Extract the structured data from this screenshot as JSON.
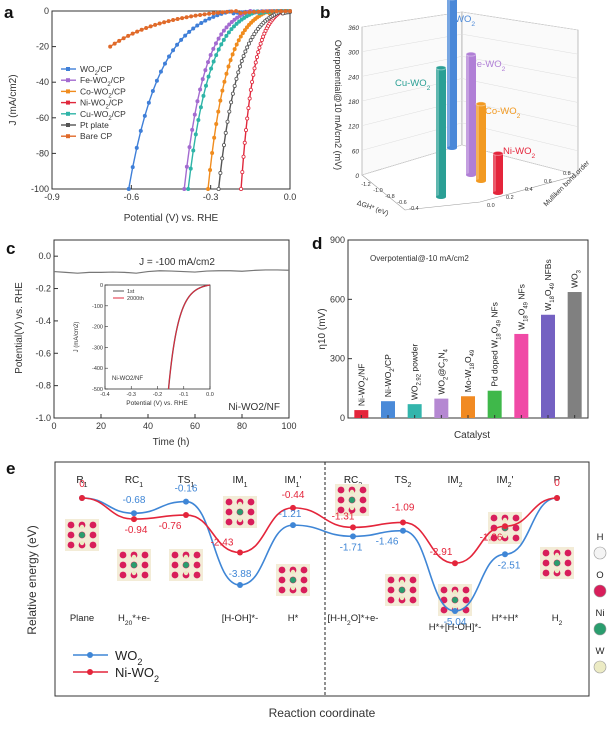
{
  "chart_data": [
    {
      "panel": "a",
      "type": "line",
      "xlabel": "Potential (V) vs. RHE",
      "ylabel": "J (mA/cm2)",
      "xlim": [
        -0.9,
        0.0
      ],
      "ylim": [
        -100,
        0
      ],
      "xticks": [
        "-0.9",
        "-0.6",
        "-0.3",
        "0.0"
      ],
      "yticks": [
        "0",
        "-20",
        "-40",
        "-60",
        "-80",
        "-100"
      ],
      "legend_position": "left",
      "series": [
        {
          "name": "WO2/CP",
          "color": "#3f7fd8",
          "marker": "square",
          "onset": -0.22,
          "end_x": -0.61
        },
        {
          "name": "Fe-WO2/CP",
          "color": "#a36bd0",
          "marker": "diamond",
          "onset": -0.15,
          "end_x": -0.4
        },
        {
          "name": "Co-WO2/CP",
          "color": "#f08c1e",
          "marker": "triangle",
          "onset": -0.08,
          "end_x": -0.31
        },
        {
          "name": "Ni-WO2/CP",
          "color": "#e0283c",
          "marker": "square-open",
          "onset": -0.03,
          "end_x": -0.185
        },
        {
          "name": "Cu-WO2/CP",
          "color": "#2fb4a8",
          "marker": "circle-half",
          "onset": -0.12,
          "end_x": -0.385
        },
        {
          "name": "Pt plate",
          "color": "#555555",
          "marker": "triangle-open",
          "onset": -0.03,
          "end_x": -0.27
        },
        {
          "name": "Bare CP",
          "color": "#e06a2a",
          "marker": "triangle-left",
          "onset": -0.2,
          "end_x": -0.68,
          "end_y": -20
        }
      ]
    },
    {
      "panel": "b",
      "type": "bar",
      "title": "",
      "zlabel": "Overpotential@10 mA/cm2 (mV)",
      "xlabel": "ΔGH* (eV)",
      "ylabel": "Mulliken bond order",
      "zlim": [
        0,
        360
      ],
      "zticks": [
        "0",
        "60",
        "120",
        "180",
        "240",
        "300",
        "360"
      ],
      "xticks": [
        "-1.2",
        "-1.0",
        "-0.8",
        "-0.6",
        "-0.4"
      ],
      "yticks": [
        "0.0",
        "0.2",
        "0.4",
        "0.6",
        "0.8"
      ],
      "bars": [
        {
          "label": "WO2",
          "value": 360,
          "color": "#4a88d8"
        },
        {
          "label": "Fe-WO2",
          "value": 290,
          "color": "#b07fd6"
        },
        {
          "label": "Cu-WO2",
          "value": 310,
          "color": "#2a9f95"
        },
        {
          "label": "Co-WO2",
          "value": 185,
          "color": "#f29a22"
        },
        {
          "label": "Ni-WO2",
          "value": 95,
          "color": "#e4253b"
        }
      ]
    },
    {
      "panel": "c",
      "type": "line",
      "annotation": "J = -100 mA/cm2",
      "sample_label": "Ni-WO2/NF",
      "xlabel": "Time (h)",
      "ylabel": "Potential(V) vs. RHE",
      "xlim": [
        0,
        100
      ],
      "ylim": [
        -1.0,
        0.1
      ],
      "xticks": [
        "0",
        "20",
        "40",
        "60",
        "80",
        "100"
      ],
      "yticks": [
        "0.0",
        "-0.2",
        "-0.4",
        "-0.6",
        "-0.8",
        "-1.0"
      ],
      "series": [
        {
          "name": "Ni-WO2/NF",
          "color": "#777777",
          "x": [
            0,
            5,
            10,
            15,
            20,
            25,
            30,
            35,
            40,
            45,
            50,
            55,
            60,
            65,
            70,
            75,
            80,
            85,
            90,
            95,
            100
          ],
          "y": [
            -0.095,
            -0.1,
            -0.105,
            -0.1,
            -0.1,
            -0.098,
            -0.1,
            -0.105,
            -0.095,
            -0.09,
            -0.092,
            -0.095,
            -0.098,
            -0.092,
            -0.09,
            -0.09,
            -0.093,
            -0.088,
            -0.085,
            -0.085,
            -0.087
          ]
        }
      ],
      "inset": {
        "xlabel": "Potential (V) vs. RHE",
        "ylabel": "J (mA/cm2)",
        "xlim": [
          -0.4,
          0.0
        ],
        "ylim": [
          -500,
          0
        ],
        "xticks": [
          "-0.4",
          "-0.3",
          "-0.2",
          "-0.1",
          "0.0"
        ],
        "yticks": [
          "0",
          "-100",
          "-200",
          "-300",
          "-400",
          "-500"
        ],
        "label": "Ni-WO2/NF",
        "legend": [
          {
            "name": "1st",
            "color": "#555555"
          },
          {
            "name": "2000th",
            "color": "#e0283c"
          }
        ]
      }
    },
    {
      "panel": "d",
      "type": "bar",
      "title": "Overpotential@-10 mA/cm2",
      "xlabel": "Catalyst",
      "ylabel": "η10 (mV)",
      "ylim": [
        0,
        900
      ],
      "yticks": [
        "0",
        "300",
        "600",
        "900"
      ],
      "categories": [
        "Ni-WO2/NF",
        "Ni-WO2/CP",
        "WO2.92 powder",
        "WO2@C3N4",
        "Mo-W18O49",
        "Pd doped W18O49 NFs",
        "W18O49 NFs",
        "W18O49 NFBs",
        "WO3"
      ],
      "values": [
        40,
        85,
        70,
        98,
        110,
        138,
        425,
        522,
        637
      ],
      "colors": [
        "#e4253b",
        "#4a8ad8",
        "#33b5ac",
        "#b588d2",
        "#f18a22",
        "#3fb84a",
        "#f04aa6",
        "#7461c2",
        "#808080"
      ]
    },
    {
      "panel": "e",
      "type": "line",
      "xlabel": "Reaction coordinate",
      "ylabel": "Relative energy (eV)",
      "categories": [
        "R1",
        "RC1",
        "TS1",
        "IM1",
        "IM1'",
        "RC2",
        "TS2",
        "IM2",
        "IM2'",
        "P"
      ],
      "state_labels": [
        "Plane",
        "H20*+e-",
        "",
        "[H-OH]*-",
        "H*",
        "[H-H2O]*+e-",
        "",
        "H*+[H-OH]*-",
        "H*+H*",
        "H2"
      ],
      "series": [
        {
          "name": "WO2",
          "color": "#3f86d6",
          "values": [
            0,
            -0.68,
            -0.16,
            -3.88,
            -1.21,
            -1.71,
            -1.46,
            -5.04,
            -2.51,
            0
          ]
        },
        {
          "name": "Ni-WO2",
          "color": "#e4253b",
          "values": [
            0,
            -0.94,
            -0.76,
            -2.43,
            -0.44,
            -1.31,
            -1.09,
            -2.91,
            -1.26,
            0
          ]
        }
      ],
      "divider_after": "IM1'",
      "element_legend": [
        {
          "name": "H",
          "color": "#f4f4f4"
        },
        {
          "name": "O",
          "color": "#d81e5b"
        },
        {
          "name": "Ni",
          "color": "#2a9d6e"
        },
        {
          "name": "W",
          "color": "#ecebc4"
        }
      ]
    }
  ],
  "panel_labels": [
    "a",
    "b",
    "c",
    "d",
    "e"
  ]
}
